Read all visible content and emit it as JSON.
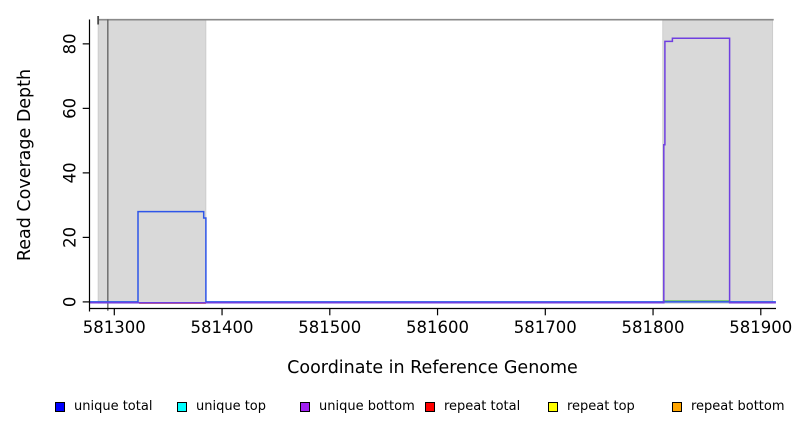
{
  "chart_data": {
    "type": "line",
    "title": "",
    "xlabel": "Coordinate in Reference Genome",
    "ylabel": "Read Coverage Depth",
    "xlim": [
      581277,
      581914
    ],
    "ylim": [
      -3,
      90.5
    ],
    "x_ticks": [
      581300,
      581400,
      581500,
      581600,
      581700,
      581800,
      581900
    ],
    "y_ticks": [
      0,
      20,
      40,
      60,
      80
    ],
    "grid": false,
    "legend_position": "bottom",
    "shaded_regions": [
      [
        581285,
        581385
      ],
      [
        581809,
        581911
      ]
    ],
    "boundary_marks": {
      "top_border": {
        "x1": 581285,
        "x2": 581912,
        "depth": 87.5
      },
      "left_inner_vline_x": 581294
    },
    "series": [
      {
        "name": "unique total",
        "color": "#0000FF",
        "stroke": "#2E55E8",
        "points": [
          [
            581277,
            0
          ],
          [
            581322,
            0
          ],
          [
            581322,
            28
          ],
          [
            581383,
            28
          ],
          [
            581383,
            26
          ],
          [
            581385,
            26
          ],
          [
            581385,
            0
          ],
          [
            581914,
            0
          ]
        ]
      },
      {
        "name": "unique top",
        "color": "#00FFFF",
        "stroke": "#00FFFF",
        "points": []
      },
      {
        "name": "unique bottom",
        "color": "#6F3FE0",
        "legend_color": "#A020F0",
        "points": [
          [
            581277,
            0
          ],
          [
            581810,
            0
          ],
          [
            581810,
            49
          ],
          [
            581811,
            49
          ],
          [
            581811,
            81
          ],
          [
            581818,
            81
          ],
          [
            581818,
            82
          ],
          [
            581871,
            82
          ],
          [
            581871,
            0
          ],
          [
            581914,
            0
          ]
        ]
      },
      {
        "name": "repeat total",
        "color": "#FF0000",
        "stroke": "#E23B33",
        "points": [
          [
            581323,
            0
          ],
          [
            581385,
            0
          ]
        ]
      },
      {
        "name": "repeat top",
        "color": "#FFFF00",
        "stroke": "#FFFF00",
        "points": []
      },
      {
        "name": "repeat bottom",
        "color": "#FFA500",
        "stroke": "#FFA500",
        "points": []
      },
      {
        "name": "zero overlap segment",
        "color": "#7CC87C",
        "stroke": "#7CC87C",
        "points": [
          [
            581810,
            0
          ],
          [
            581871,
            0
          ]
        ]
      }
    ]
  },
  "legend": {
    "items": [
      {
        "label": "unique total",
        "color": "#0000FF"
      },
      {
        "label": "unique top",
        "color": "#00FFFF"
      },
      {
        "label": "unique bottom",
        "color": "#A020F0"
      },
      {
        "label": "repeat total",
        "color": "#FF0000"
      },
      {
        "label": "repeat top",
        "color": "#FFFF00"
      },
      {
        "label": "repeat bottom",
        "color": "#FFA500"
      }
    ]
  }
}
